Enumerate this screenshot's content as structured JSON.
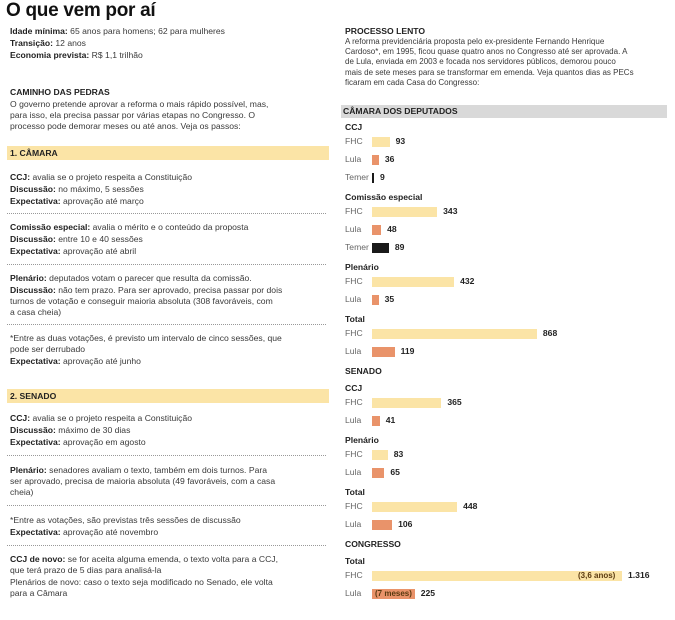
{
  "title": "O que vem por aí",
  "summary": [
    {
      "k": "Idade mínima:",
      "v": "65 anos para homens; 62 para mulheres"
    },
    {
      "k": "Transição:",
      "v": "12 anos"
    },
    {
      "k": "Economia prevista:",
      "v": "R$ 1,1 trilhão"
    }
  ],
  "caminho": {
    "heading": "CAMINHO DAS PEDRAS",
    "lines": [
      "O governo pretende aprovar a reforma o mais rápido possível, mas,",
      "para isso, ela precisa passar por várias etapas no Congresso. O",
      "processo pode demorar meses ou até anos. Veja os passos:"
    ]
  },
  "camara": {
    "band": "1. CÂMARA",
    "ccj": {
      "k": "CCJ:",
      "v": "avalia se o projeto respeita a Constituição",
      "disc_k": "Discussão:",
      "disc_v": "no máximo, 5 sessões",
      "exp_k": "Expectativa:",
      "exp_v": "aprovação até março"
    },
    "com": {
      "k": "Comissão especial:",
      "v": "avalia o mérito e o conteúdo da proposta",
      "disc_k": "Discussão:",
      "disc_v": "entre 10 e 40 sessões",
      "exp_k": "Expectativa:",
      "exp_v": "aprovação até abril"
    },
    "plen": {
      "k": "Plenário:",
      "v": "deputados votam o parecer que resulta da comissão.",
      "disc_k": "Discussão:",
      "disc_v": "não tem prazo. Para ser aprovado, precisa passar por dois",
      "l2": "turnos de votação e conseguir maioria absoluta (308 favoráveis, com",
      "l3": "a casa cheia)"
    },
    "note1": "*Entre as duas votações, é previsto um intervalo de cinco sessões, que",
    "note2": "pode ser derrubado",
    "exp_k": "Expectativa:",
    "exp_v": "aprovação até junho"
  },
  "senado": {
    "band": "2. SENADO",
    "ccj": {
      "k": "CCJ:",
      "v": "avalia se o projeto respeita a Constituição",
      "disc_k": "Discussão:",
      "disc_v": "máximo de 30 dias",
      "exp_k": "Expectativa:",
      "exp_v": "aprovação em agosto"
    },
    "plen": {
      "k": "Plenário:",
      "v": "senadores avaliam o texto, também em dois turnos. Para",
      "l2": "ser aprovado, precisa de maioria absoluta (49 favoráveis, com a casa",
      "l3": "cheia)"
    },
    "note": "*Entre as votações, são previstas três sessões de discussão",
    "exp_k": "Expectativa:",
    "exp_v": "aprovação até novembro",
    "ccj2_k": "CCJ de novo:",
    "ccj2_v": "se for aceita alguma emenda, o texto volta para a CCJ,",
    "ccj2_l2": "que terá prazo de 5 dias para analisá-la",
    "plen2": "Plenários de novo: caso o texto seja modificado no Senado, ele volta",
    "plen2_l2": "para a Câmara"
  },
  "lento": {
    "heading": "PROCESSO LENTO",
    "lines": [
      "A reforma previdenciária proposta pelo ex-presidente Fernando Henrique",
      "Cardoso*, em 1995, ficou quase quatro anos no Congresso até ser aprovada. A",
      "de Lula, enviada em 2003 e focada nos servidores públicos, demorou pouco",
      "mais de sete meses para se transformar em emenda. Veja quantos dias as PECs",
      "ficaram em cada Casa do Congresso:"
    ]
  },
  "colors": {
    "fhc": "#fbe4a6",
    "lula": "#e9936a",
    "temer": "#1a1a1a",
    "band": "#fbe4a6",
    "gray": "#d9d9d9"
  },
  "chart_data": {
    "type": "bar",
    "unit": "dias",
    "groups": [
      {
        "house": "CÂMARA DOS DEPUTADOS",
        "stage": "CCJ",
        "bars": [
          {
            "name": "FHC",
            "value": 93
          },
          {
            "name": "Lula",
            "value": 36
          },
          {
            "name": "Temer",
            "value": 9
          }
        ]
      },
      {
        "stage": "Comissão especial",
        "bars": [
          {
            "name": "FHC",
            "value": 343
          },
          {
            "name": "Lula",
            "value": 48
          },
          {
            "name": "Temer",
            "value": 89
          }
        ]
      },
      {
        "stage": "Plenário",
        "bars": [
          {
            "name": "FHC",
            "value": 432
          },
          {
            "name": "Lula",
            "value": 35
          }
        ]
      },
      {
        "stage": "Total",
        "bars": [
          {
            "name": "FHC",
            "value": 868
          },
          {
            "name": "Lula",
            "value": 119
          }
        ]
      },
      {
        "house": "SENADO",
        "stage": "CCJ",
        "bars": [
          {
            "name": "FHC",
            "value": 365
          },
          {
            "name": "Lula",
            "value": 41
          }
        ]
      },
      {
        "stage": "Plenário",
        "bars": [
          {
            "name": "FHC",
            "value": 83
          },
          {
            "name": "Lula",
            "value": 65
          }
        ]
      },
      {
        "stage": "Total",
        "bars": [
          {
            "name": "FHC",
            "value": 448
          },
          {
            "name": "Lula",
            "value": 106
          }
        ]
      },
      {
        "house": "CONGRESSO",
        "stage": "Total",
        "bars": [
          {
            "name": "FHC",
            "value": 1316,
            "label": "1.316",
            "inner": "(3,6 anos)"
          },
          {
            "name": "Lula",
            "value": 225,
            "inner": "(7 meses)"
          }
        ]
      }
    ]
  }
}
